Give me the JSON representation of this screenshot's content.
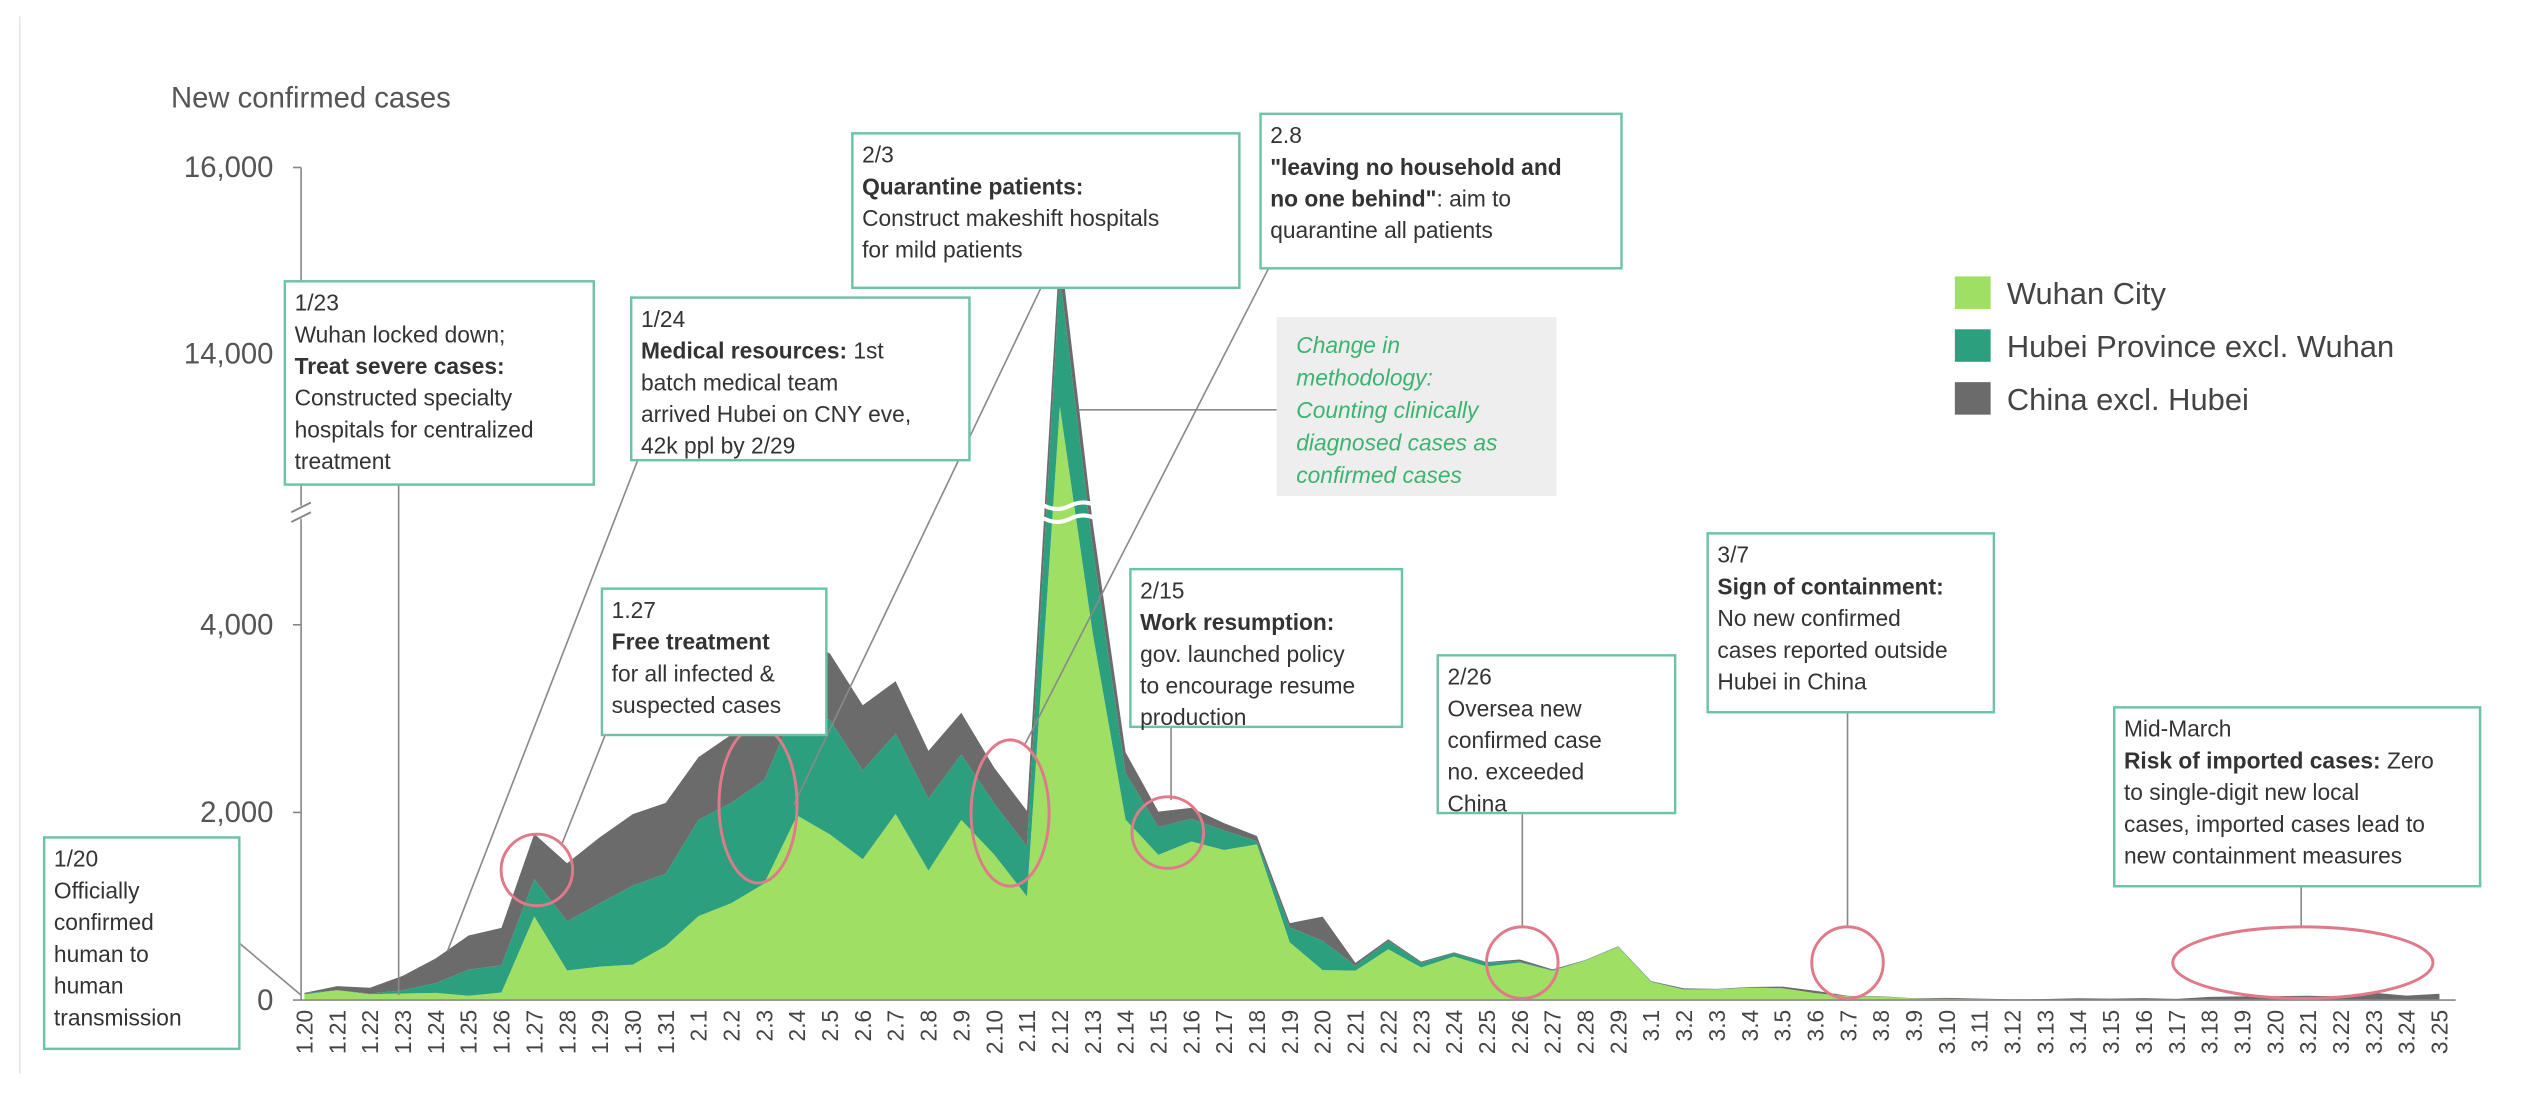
{
  "chart_data": {
    "type": "stacked_area",
    "y_label": "New confirmed cases",
    "categories": [
      "1.20",
      "1.21",
      "1.22",
      "1.23",
      "1.24",
      "1.25",
      "1.26",
      "1.27",
      "1.28",
      "1.29",
      "1.30",
      "1.31",
      "2.1",
      "2.2",
      "2.3",
      "2.4",
      "2.5",
      "2.6",
      "2.7",
      "2.8",
      "2.9",
      "2.10",
      "2.11",
      "2.12",
      "2.13",
      "2.14",
      "2.15",
      "2.16",
      "2.17",
      "2.18",
      "2.19",
      "2.20",
      "2.21",
      "2.22",
      "2.23",
      "2.24",
      "2.25",
      "2.26",
      "2.27",
      "2.28",
      "2.29",
      "3.1",
      "3.2",
      "3.3",
      "3.4",
      "3.5",
      "3.6",
      "3.7",
      "3.8",
      "3.9",
      "3.10",
      "3.11",
      "3.12",
      "3.13",
      "3.14",
      "3.15",
      "3.16",
      "3.17",
      "3.18",
      "3.19",
      "3.20",
      "3.21",
      "3.22",
      "3.23",
      "3.24",
      "3.25"
    ],
    "series": [
      {
        "name": "Wuhan City",
        "color": "#9fdf63",
        "values": [
          60,
          105,
          62,
          70,
          77,
          46,
          80,
          892,
          315,
          356,
          378,
          576,
          894,
          1033,
          1242,
          1967,
          1766,
          1501,
          1985,
          1379,
          1920,
          1552,
          1104,
          13436,
          3910,
          1923,
          1548,
          1690,
          1600,
          1660,
          615,
          319,
          314,
          541,
          348,
          464,
          357,
          401,
          313,
          420,
          565,
          193,
          111,
          114,
          131,
          126,
          74,
          41,
          36,
          16,
          13,
          8,
          5,
          4,
          4,
          4,
          1,
          1,
          0,
          0,
          0,
          0,
          0,
          0,
          0,
          0
        ]
      },
      {
        "name": "Hubei Province excl. Wuhan",
        "color": "#2c9f7f",
        "values": [
          12,
          0,
          7,
          35,
          103,
          277,
          291,
          399,
          525,
          676,
          842,
          771,
          1027,
          1070,
          1103,
          1189,
          1221,
          946,
          856,
          768,
          698,
          545,
          534,
          1404,
          913,
          497,
          295,
          243,
          207,
          33,
          160,
          312,
          52,
          89,
          50,
          35,
          44,
          8,
          5,
          3,
          5,
          3,
          3,
          1,
          3,
          0,
          0,
          0,
          0,
          1,
          0,
          0,
          0,
          0,
          0,
          0,
          0,
          0,
          0,
          0,
          0,
          0,
          0,
          0,
          0,
          0
        ]
      },
      {
        "name": "China excl. Hubei",
        "color": "#6b6b6b",
        "values": [
          5,
          44,
          62,
          154,
          264,
          365,
          398,
          480,
          619,
          705,
          762,
          755,
          669,
          726,
          890,
          731,
          707,
          696,
          558,
          509,
          444,
          381,
          377,
          312,
          267,
          221,
          166,
          115,
          79,
          56,
          45,
          258,
          31,
          18,
          11,
          9,
          5,
          24,
          9,
          4,
          3,
          6,
          11,
          4,
          5,
          17,
          25,
          3,
          4,
          2,
          11,
          7,
          3,
          7,
          16,
          12,
          20,
          12,
          34,
          39,
          41,
          46,
          39,
          78,
          47,
          67
        ]
      }
    ],
    "ylim": [
      0,
      16000
    ],
    "y_break": [
      5200,
      12300
    ],
    "yticks": [
      0,
      {
        "value": 2000,
        "label": "2,000"
      },
      {
        "value": 4000,
        "label": "4,000"
      },
      {
        "value": 14000,
        "label": "14,000"
      },
      {
        "value": 16000,
        "label": "16,000"
      }
    ],
    "legend": "top-right",
    "methodology_note": [
      "Change in",
      "methodology:",
      "Counting clinically",
      "diagnosed cases as",
      "confirmed cases"
    ],
    "annotations": [
      {
        "lines": [
          "1/20",
          "Officially",
          "confirmed",
          "human to",
          "human",
          "transmission"
        ]
      },
      {
        "lines": [
          "1/23",
          "Wuhan locked down;",
          [
            {
              "text": "Treat severe cases:",
              "bold": true
            }
          ],
          "Constructed specialty",
          "hospitals for centralized",
          "treatment"
        ]
      },
      {
        "lines": [
          "1/24",
          [
            {
              "text": "Medical resources:",
              "bold": true
            },
            {
              "text": " 1st"
            }
          ],
          "batch medical team",
          "arrived Hubei on CNY eve,",
          "42k ppl by 2/29"
        ]
      },
      {
        "lines": [
          "1.27",
          [
            {
              "text": "Free treatment",
              "bold": true
            }
          ],
          "for all infected &",
          "suspected cases"
        ]
      },
      {
        "lines": [
          "2/3",
          [
            {
              "text": "Quarantine patients:",
              "bold": true
            }
          ],
          "Construct makeshift hospitals",
          "for mild patients"
        ]
      },
      {
        "lines": [
          "2.8",
          [
            {
              "text": "\"leaving no household and",
              "bold": true
            }
          ],
          [
            {
              "text": "no one behind\"",
              "bold": true
            },
            {
              "text": ": aim to"
            }
          ],
          "quarantine all patients"
        ]
      },
      {
        "lines": [
          "2/15",
          [
            {
              "text": "Work resumption:",
              "bold": true
            }
          ],
          "gov. launched policy",
          "to  encourage resume",
          "production"
        ]
      },
      {
        "lines": [
          "2/26",
          "Oversea new",
          "confirmed case",
          "no. exceeded",
          "China"
        ]
      },
      {
        "lines": [
          "3/7",
          [
            {
              "text": "Sign of containment:",
              "bold": true
            }
          ],
          "No new confirmed",
          "cases reported outside",
          "Hubei in China"
        ]
      },
      {
        "lines": [
          "Mid-March",
          [
            {
              "text": "Risk of imported cases:",
              "bold": true
            },
            {
              "text": " Zero"
            }
          ],
          "to single-digit new local",
          "cases, imported cases lead to",
          "new containment measures"
        ]
      }
    ]
  }
}
